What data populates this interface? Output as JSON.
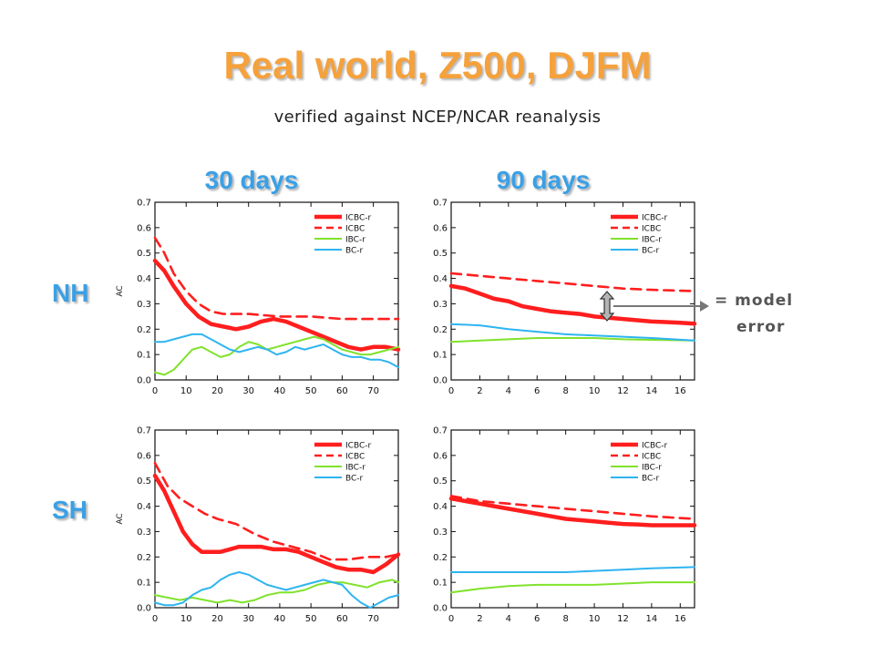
{
  "title": "Real world, Z500, DJFM",
  "subtitle": "verified against NCEP/NCAR reanalysis",
  "column_headers": [
    "30 days",
    "90 days"
  ],
  "row_headers": [
    "NH",
    "SH"
  ],
  "annotation": {
    "equals": "=",
    "line1": "model",
    "line2": "error"
  },
  "colors": {
    "title": "#f5a13c",
    "headers": "#3aa0e6",
    "ICBC-r": "#ff1e1e",
    "ICBC": "#ff1e1e",
    "IBC-r": "#80e22c",
    "BC-r": "#2eb4f0"
  },
  "chart_data": [
    {
      "type": "line",
      "id": "nh-30",
      "ylabel": "AC",
      "ylim": [
        0,
        0.7
      ],
      "xlim": [
        0,
        78
      ],
      "xticks": [
        0,
        10,
        20,
        30,
        40,
        50,
        60,
        70
      ],
      "yticks": [
        0.0,
        0.1,
        0.2,
        0.3,
        0.4,
        0.5,
        0.6,
        0.7
      ],
      "legend_placement": "top-right",
      "series": [
        {
          "name": "ICBC-r",
          "style": "thick",
          "x": [
            0,
            3,
            6,
            10,
            14,
            18,
            22,
            26,
            30,
            34,
            38,
            42,
            46,
            50,
            54,
            58,
            62,
            66,
            70,
            74,
            78
          ],
          "y": [
            0.47,
            0.43,
            0.37,
            0.3,
            0.25,
            0.22,
            0.21,
            0.2,
            0.21,
            0.23,
            0.24,
            0.23,
            0.21,
            0.19,
            0.17,
            0.15,
            0.13,
            0.12,
            0.13,
            0.13,
            0.12
          ]
        },
        {
          "name": "ICBC",
          "style": "dashed",
          "x": [
            0,
            3,
            6,
            10,
            14,
            18,
            22,
            26,
            30,
            40,
            50,
            60,
            70,
            78
          ],
          "y": [
            0.56,
            0.5,
            0.42,
            0.35,
            0.3,
            0.27,
            0.26,
            0.26,
            0.26,
            0.25,
            0.25,
            0.24,
            0.24,
            0.24
          ]
        },
        {
          "name": "IBC-r",
          "style": "thin",
          "x": [
            0,
            3,
            6,
            9,
            12,
            15,
            18,
            21,
            24,
            27,
            30,
            33,
            36,
            39,
            42,
            45,
            48,
            51,
            54,
            57,
            60,
            63,
            66,
            69,
            72,
            75,
            78
          ],
          "y": [
            0.03,
            0.02,
            0.04,
            0.08,
            0.12,
            0.13,
            0.11,
            0.09,
            0.1,
            0.13,
            0.15,
            0.14,
            0.12,
            0.13,
            0.14,
            0.15,
            0.16,
            0.17,
            0.16,
            0.14,
            0.12,
            0.11,
            0.1,
            0.1,
            0.11,
            0.12,
            0.13
          ]
        },
        {
          "name": "BC-r",
          "style": "thin",
          "x": [
            0,
            3,
            6,
            9,
            12,
            15,
            18,
            21,
            24,
            27,
            30,
            33,
            36,
            39,
            42,
            45,
            48,
            51,
            54,
            57,
            60,
            63,
            66,
            69,
            72,
            75,
            78
          ],
          "y": [
            0.15,
            0.15,
            0.16,
            0.17,
            0.18,
            0.18,
            0.16,
            0.14,
            0.12,
            0.11,
            0.12,
            0.13,
            0.12,
            0.1,
            0.11,
            0.13,
            0.12,
            0.13,
            0.14,
            0.12,
            0.1,
            0.09,
            0.09,
            0.08,
            0.08,
            0.07,
            0.05
          ]
        }
      ]
    },
    {
      "type": "line",
      "id": "nh-90",
      "ylabel": "",
      "ylim": [
        0,
        0.7
      ],
      "xlim": [
        0,
        17
      ],
      "xticks": [
        0,
        2,
        4,
        6,
        8,
        10,
        12,
        14,
        16
      ],
      "yticks": [
        0.0,
        0.1,
        0.2,
        0.3,
        0.4,
        0.5,
        0.6,
        0.7
      ],
      "legend_placement": "top-right",
      "series": [
        {
          "name": "ICBC-r",
          "style": "thick",
          "x": [
            0,
            1,
            2,
            3,
            4,
            5,
            6,
            7,
            8,
            9,
            10,
            11,
            12,
            13,
            14,
            15,
            16,
            17
          ],
          "y": [
            0.37,
            0.36,
            0.34,
            0.32,
            0.31,
            0.29,
            0.28,
            0.27,
            0.265,
            0.26,
            0.25,
            0.245,
            0.24,
            0.235,
            0.23,
            0.228,
            0.225,
            0.222
          ]
        },
        {
          "name": "ICBC",
          "style": "dashed",
          "x": [
            0,
            2,
            4,
            6,
            8,
            10,
            12,
            14,
            17
          ],
          "y": [
            0.42,
            0.41,
            0.4,
            0.39,
            0.38,
            0.37,
            0.36,
            0.355,
            0.35
          ]
        },
        {
          "name": "IBC-r",
          "style": "thin",
          "x": [
            0,
            2,
            4,
            6,
            8,
            10,
            12,
            14,
            17
          ],
          "y": [
            0.15,
            0.155,
            0.16,
            0.165,
            0.165,
            0.165,
            0.16,
            0.158,
            0.155
          ]
        },
        {
          "name": "BC-r",
          "style": "thin",
          "x": [
            0,
            2,
            4,
            6,
            8,
            10,
            12,
            14,
            17
          ],
          "y": [
            0.22,
            0.215,
            0.2,
            0.19,
            0.18,
            0.175,
            0.17,
            0.165,
            0.155
          ]
        }
      ]
    },
    {
      "type": "line",
      "id": "sh-30",
      "ylabel": "AC",
      "ylim": [
        0,
        0.7
      ],
      "xlim": [
        0,
        78
      ],
      "xticks": [
        0,
        10,
        20,
        30,
        40,
        50,
        60,
        70
      ],
      "yticks": [
        0.0,
        0.1,
        0.2,
        0.3,
        0.4,
        0.5,
        0.6,
        0.7
      ],
      "legend_placement": "top-right",
      "series": [
        {
          "name": "ICBC-r",
          "style": "thick",
          "x": [
            0,
            3,
            6,
            9,
            12,
            15,
            18,
            21,
            24,
            27,
            30,
            34,
            38,
            42,
            46,
            50,
            54,
            58,
            62,
            66,
            70,
            74,
            78
          ],
          "y": [
            0.52,
            0.46,
            0.38,
            0.3,
            0.25,
            0.22,
            0.22,
            0.22,
            0.23,
            0.24,
            0.24,
            0.24,
            0.23,
            0.23,
            0.22,
            0.2,
            0.18,
            0.16,
            0.15,
            0.15,
            0.14,
            0.17,
            0.21
          ]
        },
        {
          "name": "ICBC",
          "style": "dashed",
          "x": [
            0,
            4,
            8,
            12,
            16,
            20,
            26,
            32,
            38,
            44,
            50,
            56,
            62,
            68,
            74,
            78
          ],
          "y": [
            0.57,
            0.48,
            0.43,
            0.4,
            0.37,
            0.35,
            0.33,
            0.29,
            0.26,
            0.24,
            0.22,
            0.19,
            0.19,
            0.2,
            0.2,
            0.21
          ]
        },
        {
          "name": "IBC-r",
          "style": "thin",
          "x": [
            0,
            4,
            8,
            12,
            16,
            20,
            24,
            28,
            32,
            36,
            40,
            44,
            48,
            52,
            56,
            60,
            64,
            68,
            72,
            76,
            78
          ],
          "y": [
            0.05,
            0.04,
            0.03,
            0.04,
            0.03,
            0.02,
            0.03,
            0.02,
            0.03,
            0.05,
            0.06,
            0.06,
            0.07,
            0.09,
            0.1,
            0.1,
            0.09,
            0.08,
            0.1,
            0.11,
            0.1
          ]
        },
        {
          "name": "BC-r",
          "style": "thin",
          "x": [
            0,
            3,
            6,
            9,
            12,
            15,
            18,
            21,
            24,
            27,
            30,
            33,
            36,
            39,
            42,
            45,
            48,
            51,
            54,
            57,
            60,
            63,
            66,
            69,
            72,
            75,
            78
          ],
          "y": [
            0.02,
            0.01,
            0.01,
            0.02,
            0.05,
            0.07,
            0.08,
            0.11,
            0.13,
            0.14,
            0.13,
            0.11,
            0.09,
            0.08,
            0.07,
            0.08,
            0.09,
            0.1,
            0.11,
            0.1,
            0.09,
            0.05,
            0.02,
            0.0,
            0.02,
            0.04,
            0.05
          ]
        }
      ]
    },
    {
      "type": "line",
      "id": "sh-90",
      "ylabel": "",
      "ylim": [
        0,
        0.7
      ],
      "xlim": [
        0,
        17
      ],
      "xticks": [
        0,
        2,
        4,
        6,
        8,
        10,
        12,
        14,
        16
      ],
      "yticks": [
        0.0,
        0.1,
        0.2,
        0.3,
        0.4,
        0.5,
        0.6,
        0.7
      ],
      "legend_placement": "top-right",
      "series": [
        {
          "name": "ICBC-r",
          "style": "thick",
          "x": [
            0,
            1,
            2,
            3,
            4,
            5,
            6,
            7,
            8,
            9,
            10,
            11,
            12,
            13,
            14,
            15,
            16,
            17
          ],
          "y": [
            0.43,
            0.42,
            0.41,
            0.4,
            0.39,
            0.38,
            0.37,
            0.36,
            0.35,
            0.345,
            0.34,
            0.335,
            0.33,
            0.328,
            0.325,
            0.325,
            0.325,
            0.325
          ]
        },
        {
          "name": "ICBC",
          "style": "dashed",
          "x": [
            0,
            2,
            4,
            6,
            8,
            10,
            12,
            14,
            17
          ],
          "y": [
            0.44,
            0.42,
            0.41,
            0.4,
            0.39,
            0.38,
            0.37,
            0.36,
            0.35
          ]
        },
        {
          "name": "IBC-r",
          "style": "thin",
          "x": [
            0,
            2,
            4,
            6,
            8,
            10,
            12,
            14,
            17
          ],
          "y": [
            0.06,
            0.075,
            0.085,
            0.09,
            0.09,
            0.09,
            0.095,
            0.1,
            0.1
          ]
        },
        {
          "name": "BC-r",
          "style": "thin",
          "x": [
            0,
            2,
            4,
            6,
            8,
            10,
            12,
            14,
            17
          ],
          "y": [
            0.14,
            0.14,
            0.14,
            0.14,
            0.14,
            0.145,
            0.15,
            0.155,
            0.16
          ]
        }
      ]
    }
  ]
}
